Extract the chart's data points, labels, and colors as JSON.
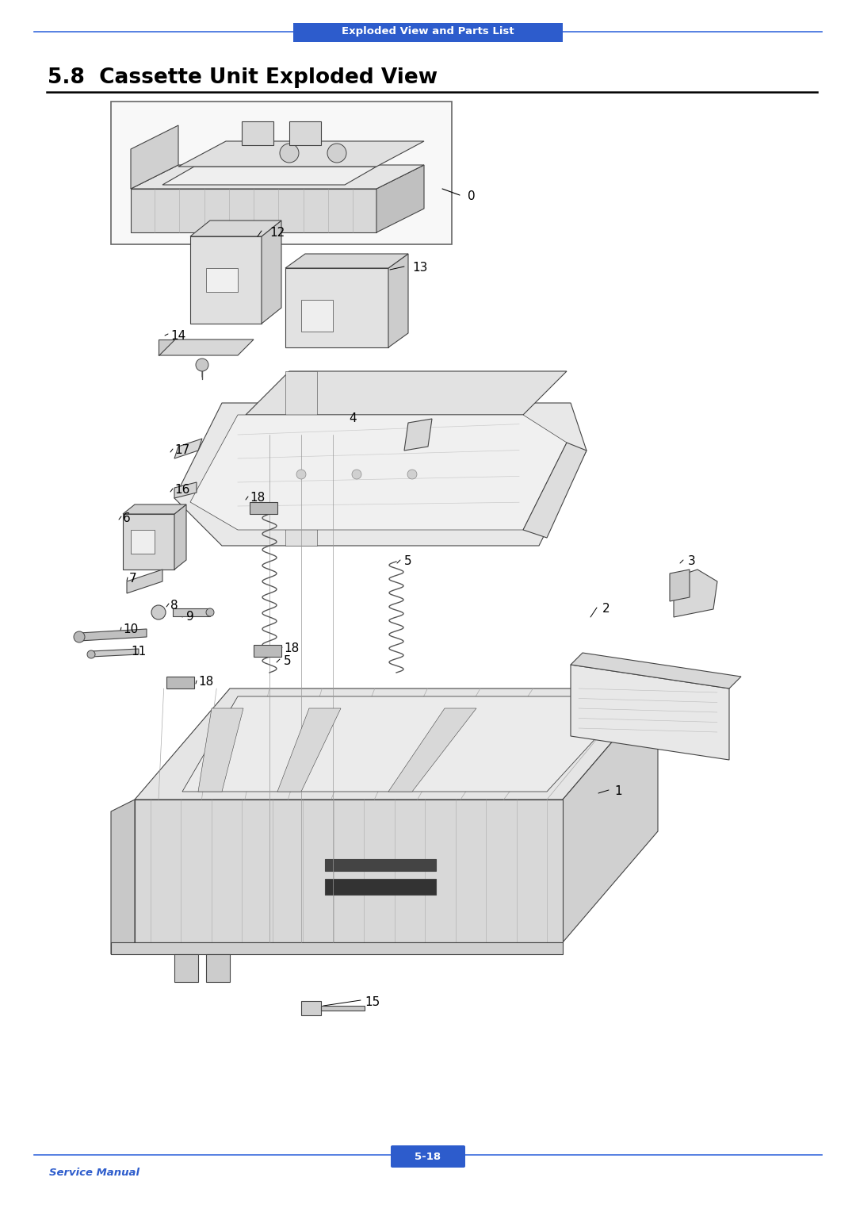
{
  "page_bg": "#ffffff",
  "header_bar_color": "#2d5ccc",
  "header_text": "Exploded View and Parts List",
  "header_text_color": "#ffffff",
  "header_line_color": "#3a6bdd",
  "title": "5.8  Cassette Unit Exploded View",
  "title_color": "#000000",
  "title_underline_color": "#000000",
  "footer_text": "Service Manual",
  "footer_text_color": "#2d5ccc",
  "footer_page": "5-18",
  "footer_page_bg": "#2d5ccc",
  "footer_page_color": "#ffffff",
  "footer_line_color": "#3a6bdd",
  "lc": "#444444",
  "fc_light": "#eeeeee",
  "fc_mid": "#dddddd",
  "fc_dark": "#cccccc"
}
